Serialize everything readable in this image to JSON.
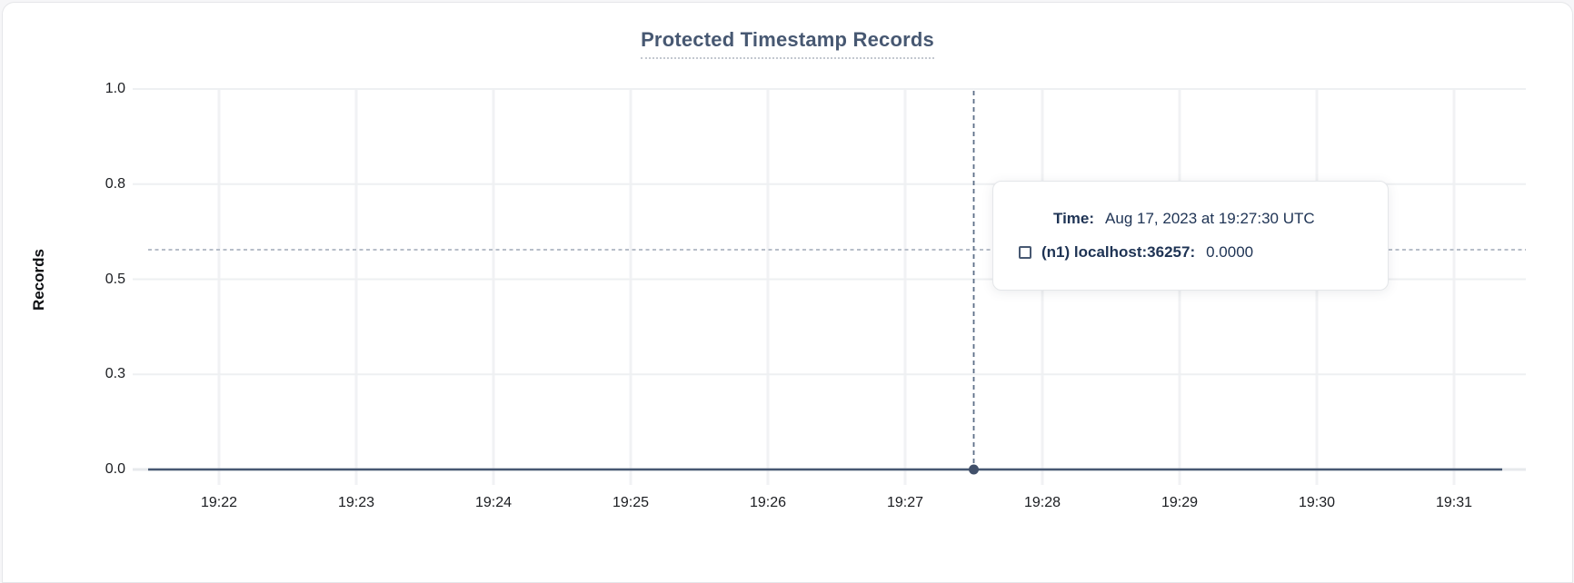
{
  "chart": {
    "title": "Protected Timestamp Records",
    "colors": {
      "title_text": "#475872",
      "axis_text": "#1a1c20",
      "grid_vertical": "#f1f2f4",
      "grid_horizontal": "#eef0f2",
      "baseline": "#e7e9ec",
      "data_line": "#475872",
      "hover_dot": "#41506a",
      "crosshair_vertical": "#5d6f88",
      "crosshair_horizontal": "#b7bec9",
      "tooltip_text": "#1e3354",
      "tooltip_border": "#e4e6e9",
      "tooltip_background": "#ffffff"
    }
  },
  "chart_data": {
    "type": "line",
    "title": "Protected Timestamp Records",
    "xlabel": "",
    "ylabel": "Records",
    "x": [
      "19:22",
      "19:23",
      "19:24",
      "19:25",
      "19:26",
      "19:27",
      "19:28",
      "19:29",
      "19:30",
      "19:31"
    ],
    "series": [
      {
        "name": "(n1) localhost:36257",
        "values": [
          0.0,
          0.0,
          0.0,
          0.0,
          0.0,
          0.0,
          0.0,
          0.0,
          0.0,
          0.0
        ]
      }
    ],
    "ylim": [
      0.0,
      1.0
    ],
    "y_tick_labels": [
      "1.0",
      "0.8",
      "0.5",
      "0.3",
      "0.0"
    ],
    "y_tick_values": [
      1.0,
      0.75,
      0.5,
      0.25,
      0.0
    ],
    "grid": true,
    "legend_position": "none",
    "hover": {
      "x_tick_index": 5.5,
      "time": "19:27:30",
      "value": 0.0
    }
  },
  "tooltip": {
    "time_label": "Time:",
    "time_value": "Aug 17, 2023 at 19:27:30 UTC",
    "series_icon": "checkbox-outline-icon",
    "series_label": "(n1) localhost:36257:",
    "series_value": "0.0000"
  }
}
